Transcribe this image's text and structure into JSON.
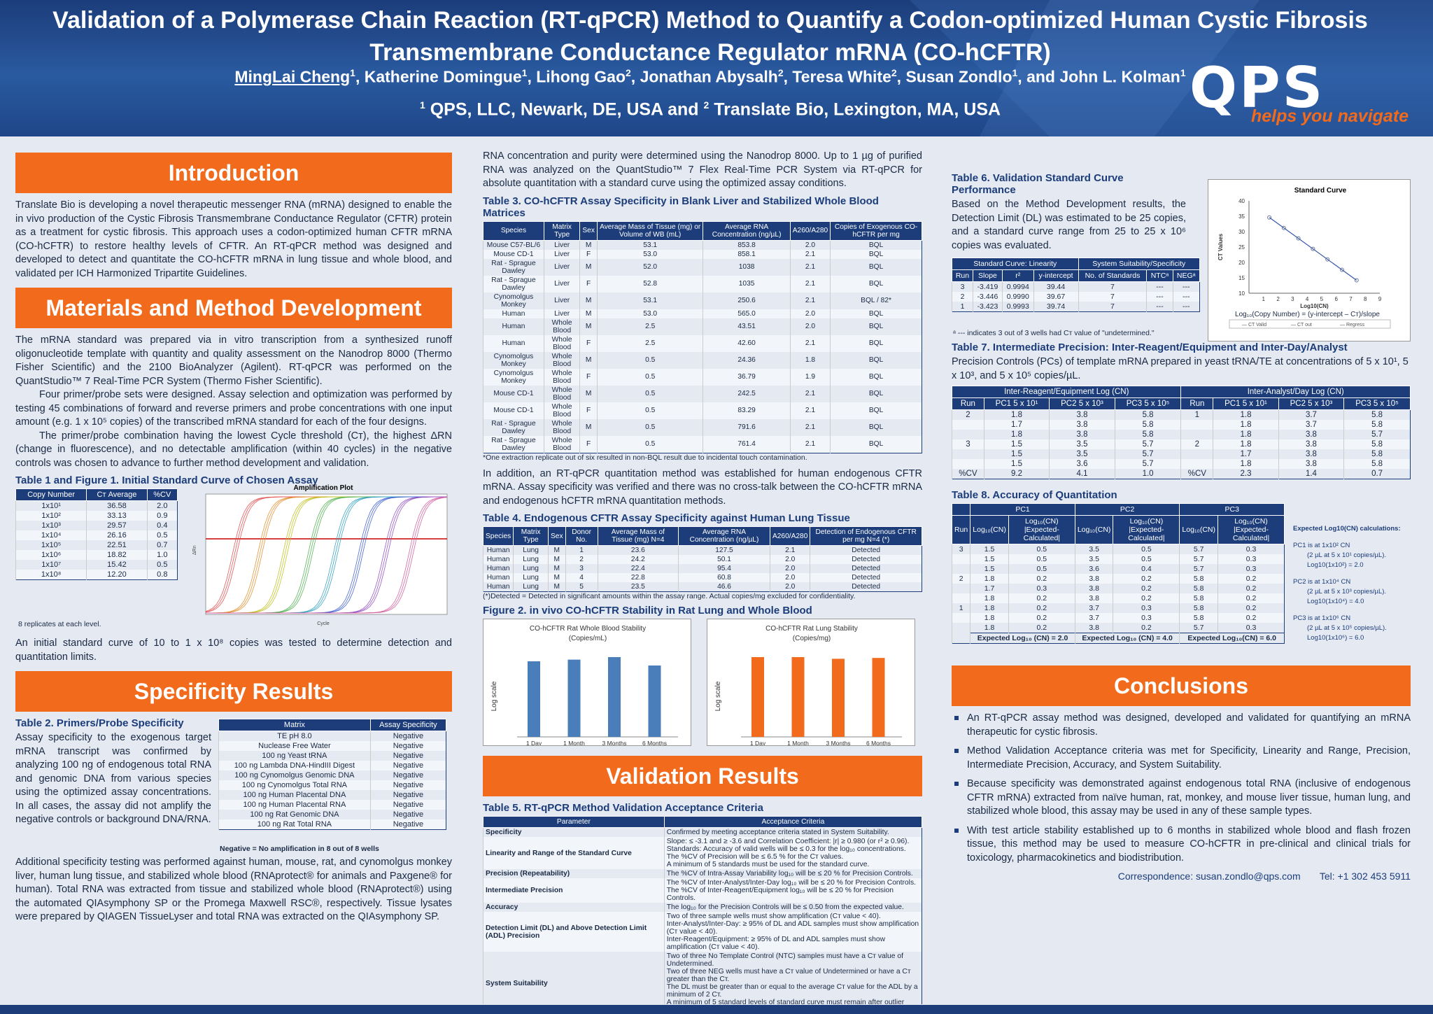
{
  "header": {
    "title": "Validation of a Polymerase Chain Reaction (RT-qPCR) Method to Quantify a Codon-optimized Human Cystic Fibrosis Transmembrane Conductance Regulator mRNA (CO-hCFTR)",
    "authors": [
      {
        "name": "MingLai Cheng",
        "aff": "1",
        "underline": true
      },
      {
        "name": "Katherine Domingue",
        "aff": "1"
      },
      {
        "name": "Lihong Gao",
        "aff": "2"
      },
      {
        "name": "Jonathan Abysalh",
        "aff": "2"
      },
      {
        "name": "Teresa White",
        "aff": "2"
      },
      {
        "name": "Susan Zondlo",
        "aff": "1"
      },
      {
        "name": "and John L. Kolman",
        "aff": "1"
      }
    ],
    "affil1": "QPS, LLC, Newark, DE, USA  and ",
    "affil2": "Translate Bio, Lexington, MA, USA",
    "logo": "QPS",
    "tagline": "helps you navigate"
  },
  "intro": {
    "heading": "Introduction",
    "text": "Translate Bio is developing a novel therapeutic messenger RNA (mRNA) designed to enable the in vivo production of the Cystic Fibrosis Transmembrane Conductance Regulator (CFTR) protein as a treatment for cystic fibrosis. This approach uses a codon-optimized human CFTR mRNA (CO-hCFTR) to restore healthy levels of CFTR. An RT-qPCR method was designed and developed to detect and quantitate the CO-hCFTR mRNA in lung tissue and whole blood, and validated per ICH Harmonized Tripartite Guidelines."
  },
  "methods": {
    "heading": "Materials and Method Development",
    "p1": "The mRNA standard was prepared via in vitro transcription from a synthesized runoff oligonucleotide template with quantity and quality assessment on the Nanodrop 8000 (Thermo Fisher Scientific) and the 2100 BioAnalyzer (Agilent). RT-qPCR was performed on the QuantStudio™ 7 Real-Time PCR System (Thermo Fisher Scientific).",
    "p2": "Four primer/probe sets were designed. Assay selection and optimization was performed by testing 45 combinations of forward and reverse primers and probe concentrations with one input amount (e.g. 1 x 10⁵ copies) of the transcribed mRNA standard for each of the four designs.",
    "p3": "The primer/probe combination having the lowest Cycle threshold (Cт), the highest ΔRN (change in fluorescence), and no detectable amplification (within 40 cycles) in the negative controls was chosen to advance to further method development and validation.",
    "t1title": "Table 1 and Figure 1.  Initial Standard Curve of Chosen Assay",
    "t1head": [
      "Copy Number",
      "Cт Average",
      "%CV"
    ],
    "t1rows": [
      [
        "1x10¹",
        "36.58",
        "2.0"
      ],
      [
        "1x10²",
        "33.13",
        "0.9"
      ],
      [
        "1x10³",
        "29.57",
        "0.4"
      ],
      [
        "1x10⁴",
        "26.16",
        "0.5"
      ],
      [
        "1x10⁵",
        "22.51",
        "0.7"
      ],
      [
        "1x10⁶",
        "18.82",
        "1.0"
      ],
      [
        "1x10⁷",
        "15.42",
        "0.5"
      ],
      [
        "1x10⁸",
        "12.20",
        "0.8"
      ]
    ],
    "t1note": "8 replicates at each level.",
    "ampTitle": "Amplification Plot",
    "ampX": "Cycle",
    "ampY": "ΔRn",
    "after": "An initial standard curve of 10 to 1 x 10⁸ copies was tested to determine detection and quantitation limits."
  },
  "spec": {
    "heading": "Specificity Results",
    "t2title": "Table 2.  Primers/Probe Specificity",
    "t2text": "Assay specificity to the exogenous target mRNA transcript was confirmed by analyzing 100 ng of endogenous total RNA and genomic DNA from various species using the optimized assay concentrations. In all cases, the assay did not amplify the negative controls or background DNA/RNA.",
    "t2head": [
      "Matrix",
      "Assay Specificity"
    ],
    "t2rows": [
      [
        "TE pH 8.0",
        "Negative"
      ],
      [
        "Nuclease Free Water",
        "Negative"
      ],
      [
        "100 ng Yeast tRNA",
        "Negative"
      ],
      [
        "100 ng Lambda DNA-HindIII Digest",
        "Negative"
      ],
      [
        "100 ng Cynomolgus Genomic DNA",
        "Negative"
      ],
      [
        "100 ng Cynomolgus Total RNA",
        "Negative"
      ],
      [
        "100 ng Human Placental DNA",
        "Negative"
      ],
      [
        "100 ng Human Placental RNA",
        "Negative"
      ],
      [
        "100 ng Rat Genomic DNA",
        "Negative"
      ],
      [
        "100 ng Rat Total RNA",
        "Negative"
      ]
    ],
    "t2note": "Negative = No amplification in 8 out of 8 wells",
    "p2": "Additional specificity testing was performed against human, mouse, rat, and cynomolgus monkey liver, human lung tissue, and stabilized whole blood (RNAprotect® for animals and Paxgene® for human).  Total RNA was extracted from tissue and stabilized whole blood (RNAprotect®) using the automated QIAsymphony SP or the Promega Maxwell RSC®, respectively.  Tissue lysates were prepared by QIAGEN TissueLyser and total RNA was extracted on the QIAsymphony SP."
  },
  "mid": {
    "p1": "RNA concentration and purity were determined using the Nanodrop 8000.  Up to 1 µg of purified RNA was analyzed on the QuantStudio™ 7 Flex Real-Time PCR System via RT-qPCR for absolute quantitation with a standard curve using the optimized assay conditions.",
    "t3title": "Table 3.  CO-hCFTR Assay Specificity in Blank Liver and Stabilized Whole Blood Matrices",
    "t3head": [
      "Species",
      "Matrix Type",
      "Sex",
      "Average Mass of Tissue (mg) or Volume of WB (mL)",
      "Average RNA Concentration (ng/µL)",
      "A260/A280",
      "Copies of Exogenous CO-hCFTR per mg"
    ],
    "t3rows": [
      [
        "Mouse C57-BL/6",
        "Liver",
        "M",
        "53.1",
        "853.8",
        "2.0",
        "BQL"
      ],
      [
        "Mouse CD-1",
        "Liver",
        "F",
        "53.0",
        "858.1",
        "2.1",
        "BQL"
      ],
      [
        "Rat - Sprague Dawley",
        "Liver",
        "M",
        "52.0",
        "1038",
        "2.1",
        "BQL"
      ],
      [
        "Rat - Sprague Dawley",
        "Liver",
        "F",
        "52.8",
        "1035",
        "2.1",
        "BQL"
      ],
      [
        "Cynomolgus Monkey",
        "Liver",
        "M",
        "53.1",
        "250.6",
        "2.1",
        "BQL / 82*"
      ],
      [
        "Human",
        "Liver",
        "M",
        "53.0",
        "565.0",
        "2.0",
        "BQL"
      ],
      [
        "Human",
        "Whole Blood",
        "M",
        "2.5",
        "43.51",
        "2.0",
        "BQL"
      ],
      [
        "Human",
        "Whole Blood",
        "F",
        "2.5",
        "42.60",
        "2.1",
        "BQL"
      ],
      [
        "Cynomolgus Monkey",
        "Whole Blood",
        "M",
        "0.5",
        "24.36",
        "1.8",
        "BQL"
      ],
      [
        "Cynomolgus Monkey",
        "Whole Blood",
        "F",
        "0.5",
        "36.79",
        "1.9",
        "BQL"
      ],
      [
        "Mouse CD-1",
        "Whole Blood",
        "M",
        "0.5",
        "242.5",
        "2.1",
        "BQL"
      ],
      [
        "Mouse CD-1",
        "Whole Blood",
        "F",
        "0.5",
        "83.29",
        "2.1",
        "BQL"
      ],
      [
        "Rat - Sprague Dawley",
        "Whole Blood",
        "M",
        "0.5",
        "791.6",
        "2.1",
        "BQL"
      ],
      [
        "Rat - Sprague Dawley",
        "Whole Blood",
        "F",
        "0.5",
        "761.4",
        "2.1",
        "BQL"
      ]
    ],
    "t3note": "*One extraction replicate out of six resulted in non-BQL result due to incidental touch contamination.",
    "p2": "In addition, an RT-qPCR quantitation method was established for human endogenous CFTR mRNA. Assay specificity was verified and there was no cross-talk between the CO-hCFTR mRNA and endogenous hCFTR mRNA quantitation methods.",
    "t4title": "Table 4.  Endogenous CFTR Assay Specificity against Human Lung Tissue",
    "t4head": [
      "Species",
      "Matrix Type",
      "Sex",
      "Donor No.",
      "Average Mass of Tissue (mg) N=4",
      "Average RNA Concentration (ng/µL)",
      "A260/A280",
      "Detection of Endogenous CFTR per mg N=4 (*)"
    ],
    "t4rows": [
      [
        "Human",
        "Lung",
        "M",
        "1",
        "23.6",
        "127.5",
        "2.1",
        "Detected"
      ],
      [
        "Human",
        "Lung",
        "M",
        "2",
        "24.2",
        "50.1",
        "2.0",
        "Detected"
      ],
      [
        "Human",
        "Lung",
        "M",
        "3",
        "22.4",
        "95.4",
        "2.0",
        "Detected"
      ],
      [
        "Human",
        "Lung",
        "M",
        "4",
        "22.8",
        "60.8",
        "2.0",
        "Detected"
      ],
      [
        "Human",
        "Lung",
        "M",
        "5",
        "23.5",
        "46.6",
        "2.0",
        "Detected"
      ]
    ],
    "t4note": "(*)Detected = Detected in significant amounts within the assay range. Actual copies/mg excluded for confidentiality.",
    "fig2title": "Figure 2.  in vivo CO-hCFTR Stability in Rat Lung and Whole Blood",
    "valHeading": "Validation Results",
    "t5title": "Table 5.  RT-qPCR Method Validation Acceptance Criteria",
    "t5head": [
      "Parameter",
      "Acceptance Criteria"
    ],
    "t5rows": [
      [
        "Specificity",
        "Confirmed by meeting acceptance criteria stated in System Suitability."
      ],
      [
        "Linearity and Range of the Standard Curve",
        "Slope: ≤ -3.1 and ≥ -3.6 and Correlation Coefficient: |r| ≥ 0.980 (or r² ≥ 0.96).\nStandards: Accuracy of valid wells will be ≤ 0.3 for the log₁₀ concentrations.\nThe %CV of Precision will be ≤ 6.5 % for the Cт values.\nA minimum of 5 standards must be used for the standard curve."
      ],
      [
        "Precision (Repeatability)",
        "The %CV of Intra-Assay Variability log₁₀ will be ≤ 20 % for Precision Controls."
      ],
      [
        "Intermediate Precision",
        "The %CV of Inter-Analyst/Inter-Day log₁₀ will be ≤ 20 % for Precision Controls.\nThe %CV of Inter-Reagent/Equipment log₁₀ will be ≤ 20 % for Precision Controls."
      ],
      [
        "Accuracy",
        "The log₁₀ for the Precision Controls will be ≤ 0.50 from the expected value."
      ],
      [
        "Detection Limit (DL) and Above Detection Limit (ADL) Precision",
        "Two of three sample wells must show amplification (Cт value < 40).\nInter-Analyst/Inter-Day: ≥ 95% of DL and ADL samples must show amplification (Cт value < 40).\nInter-Reagent/Equipment: ≥ 95% of DL and ADL samples must show amplification (Cт value < 40)."
      ],
      [
        "System Suitability",
        "Two of three No Template Control (NTC) samples must have a Cт value of Undetermined.\nTwo of three NEG wells must have a Cт value of Undetermined or have a Cт greater than the Cт.\nThe DL must be greater than or equal to the average Cт value for the ADL by a minimum of 2 Cт.\nA minimum of 5 standard levels of standard curve must remain after outlier removal."
      ]
    ],
    "t5note": "Run acceptance is based upon Standard Curve and System Suitability performance."
  },
  "right": {
    "t6title": "Table 6.  Validation Standard Curve Performance",
    "t6text": "Based on the Method Development results, the Detection Limit (DL) was estimated to be 25 copies, and a standard curve range from 25 to 25 x 10⁶ copies was evaluated.",
    "t6grp1": "Standard Curve:  Linearity",
    "t6grp2": "System Suitability/Specificity",
    "t6head": [
      "Run",
      "Slope",
      "r²",
      "y-intercept",
      "No. of Standards",
      "NTCᵃ",
      "NEGᵃ"
    ],
    "t6rows": [
      [
        "3",
        "-3.419",
        "0.9994",
        "39.44",
        "7",
        "---",
        "---"
      ],
      [
        "2",
        "-3.446",
        "0.9990",
        "39.67",
        "7",
        "---",
        "---"
      ],
      [
        "1",
        "-3.423",
        "0.9993",
        "39.74",
        "7",
        "---",
        "---"
      ]
    ],
    "t6note": "ᵃ --- indicates 3 out of 3 wells had Cт value of \"undetermined.\"",
    "t7title": "Table 7. Intermediate Precision:  Inter-Reagent/Equipment and Inter-Day/Analyst",
    "t7text": "Precision Controls (PCs) of template mRNA prepared in yeast tRNA/TE at concentrations of 5 x 10¹, 5 x 10³, and 5 x 10⁵ copies/µL.",
    "t7g1": "Inter-Reagent/Equipment Log (CN)",
    "t7g2": "Inter-Analyst/Day Log (CN)",
    "t7head": [
      "Run",
      "PC1 5 x 10¹",
      "PC2 5 x 10³",
      "PC3 5 x 10⁵"
    ],
    "t7left": [
      [
        "2",
        "1.8",
        "3.8",
        "5.8"
      ],
      [
        "",
        "1.7",
        "3.8",
        "5.8"
      ],
      [
        "",
        "1.8",
        "3.8",
        "5.8"
      ],
      [
        "3",
        "1.5",
        "3.5",
        "5.7"
      ],
      [
        "",
        "1.5",
        "3.5",
        "5.7"
      ],
      [
        "",
        "1.5",
        "3.6",
        "5.7"
      ],
      [
        "%CV",
        "9.2",
        "4.1",
        "1.0"
      ]
    ],
    "t7right": [
      [
        "1",
        "1.8",
        "3.7",
        "5.8"
      ],
      [
        "",
        "1.8",
        "3.7",
        "5.8"
      ],
      [
        "",
        "1.8",
        "3.8",
        "5.7"
      ],
      [
        "2",
        "1.8",
        "3.8",
        "5.8"
      ],
      [
        "",
        "1.7",
        "3.8",
        "5.8"
      ],
      [
        "",
        "1.8",
        "3.8",
        "5.8"
      ],
      [
        "%CV",
        "2.3",
        "1.4",
        "0.7"
      ]
    ],
    "t8title": "Table 8. Accuracy of Quantitation",
    "t8groups": [
      "PC1",
      "PC2",
      "PC3"
    ],
    "t8head": [
      "Run",
      "Log₁₀(CN)",
      "Log₁₀(CN) |Expected-Calculated|"
    ],
    "t8rows": [
      [
        "3",
        "1.5",
        "0.5",
        "3.5",
        "0.5",
        "5.7",
        "0.3"
      ],
      [
        "",
        "1.5",
        "0.5",
        "3.5",
        "0.5",
        "5.7",
        "0.3"
      ],
      [
        "",
        "1.5",
        "0.5",
        "3.6",
        "0.4",
        "5.7",
        "0.3"
      ],
      [
        "2",
        "1.8",
        "0.2",
        "3.8",
        "0.2",
        "5.8",
        "0.2"
      ],
      [
        "",
        "1.7",
        "0.3",
        "3.8",
        "0.2",
        "5.8",
        "0.2"
      ],
      [
        "",
        "1.8",
        "0.2",
        "3.8",
        "0.2",
        "5.8",
        "0.2"
      ],
      [
        "1",
        "1.8",
        "0.2",
        "3.7",
        "0.3",
        "5.8",
        "0.2"
      ],
      [
        "",
        "1.8",
        "0.2",
        "3.7",
        "0.3",
        "5.8",
        "0.2"
      ],
      [
        "",
        "1.8",
        "0.2",
        "3.8",
        "0.2",
        "5.7",
        "0.3"
      ]
    ],
    "t8foot": [
      "Expected Log₁₀ (CN) = 2.0",
      "Expected Log₁₀ (CN) = 4.0",
      "Expected Log₁₀(CN) = 6.0"
    ],
    "exp": {
      "title": "Expected Log10(CN) calculations:",
      "pc1a": "PC1 is at 1x10² CN",
      "pc1b": "(2 µL at 5 x 10¹ copies/µL).",
      "pc1c": "Log10(1x10²) = 2.0",
      "pc2a": "PC2 is at 1x10⁴ CN",
      "pc2b": "(2 µL at 5 x 10³ copies/µL).",
      "pc2c": "Log10(1x10⁴) = 4.0",
      "pc3a": "PC3 is at 1x10⁶ CN",
      "pc3b": "(2 µL at 5 x 10⁵ copies/µL).",
      "pc3c": "Log10(1x10⁶) = 6.0"
    },
    "concHeading": "Conclusions",
    "bullets": [
      "An RT-qPCR assay method was designed, developed and validated for quantifying an mRNA therapeutic for cystic fibrosis.",
      "Method Validation Acceptance criteria was met for Specificity, Linearity and Range, Precision, Intermediate Precision, Accuracy, and System Suitability.",
      "Because specificity was demonstrated against endogenous total RNA (inclusive of endogenous CFTR mRNA) extracted from naïve human, rat, monkey, and mouse liver tissue, human lung, and stabilized whole blood, this assay may be used in any of these sample types.",
      "With test article stability established up to 6 months in stabilized whole blood and flash frozen tissue, this method may be used to measure CO-hCFTR in pre-clinical and clinical trials for toxicology, pharmacokinetics and biodistribution."
    ],
    "corr": "Correspondence: susan.zondlo@qps.com",
    "tel": "Tel: +1 302  453 5911"
  },
  "chart_data": [
    {
      "type": "bar",
      "title": "CO-hCFTR Rat Whole Blood Stability (Copies/mL)",
      "ylabel": "Log scale",
      "categories": [
        "1 Day",
        "1 Month",
        "3 Months",
        "6 Months"
      ],
      "values": [
        0.9,
        0.92,
        0.95,
        0.85
      ],
      "color": "#4a7ebb"
    },
    {
      "type": "bar",
      "title": "CO-hCFTR Rat Lung Stability (Copies/mg)",
      "ylabel": "Log scale",
      "categories": [
        "1 Day",
        "1 Month",
        "3 Months",
        "6 Months"
      ],
      "values": [
        0.95,
        0.95,
        0.93,
        0.94
      ],
      "color": "#f26a1b"
    },
    {
      "type": "scatter",
      "title": "Standard Curve",
      "xlabel": "Log10(CN)",
      "ylabel": "CT Values",
      "caption": "Log₁₀(Copy Number) = (y-intercept – Cт)/slope",
      "xlim": [
        0,
        9
      ],
      "ylim": [
        10,
        40
      ],
      "xticks": [
        1,
        2,
        3,
        4,
        5,
        6,
        7,
        8,
        9
      ],
      "yticks": [
        10,
        15,
        20,
        25,
        30,
        35,
        40
      ],
      "x": [
        1.4,
        2.4,
        3.4,
        4.4,
        5.4,
        6.4,
        7.4
      ],
      "y": [
        34.6,
        31.2,
        27.8,
        24.4,
        21.0,
        17.6,
        14.2
      ],
      "legend": [
        "CT Valid",
        "CT out",
        "Regress"
      ]
    },
    {
      "type": "line",
      "title": "Amplification Plot",
      "xlabel": "Cycle",
      "ylabel": "ΔRn",
      "curves": 8
    }
  ]
}
